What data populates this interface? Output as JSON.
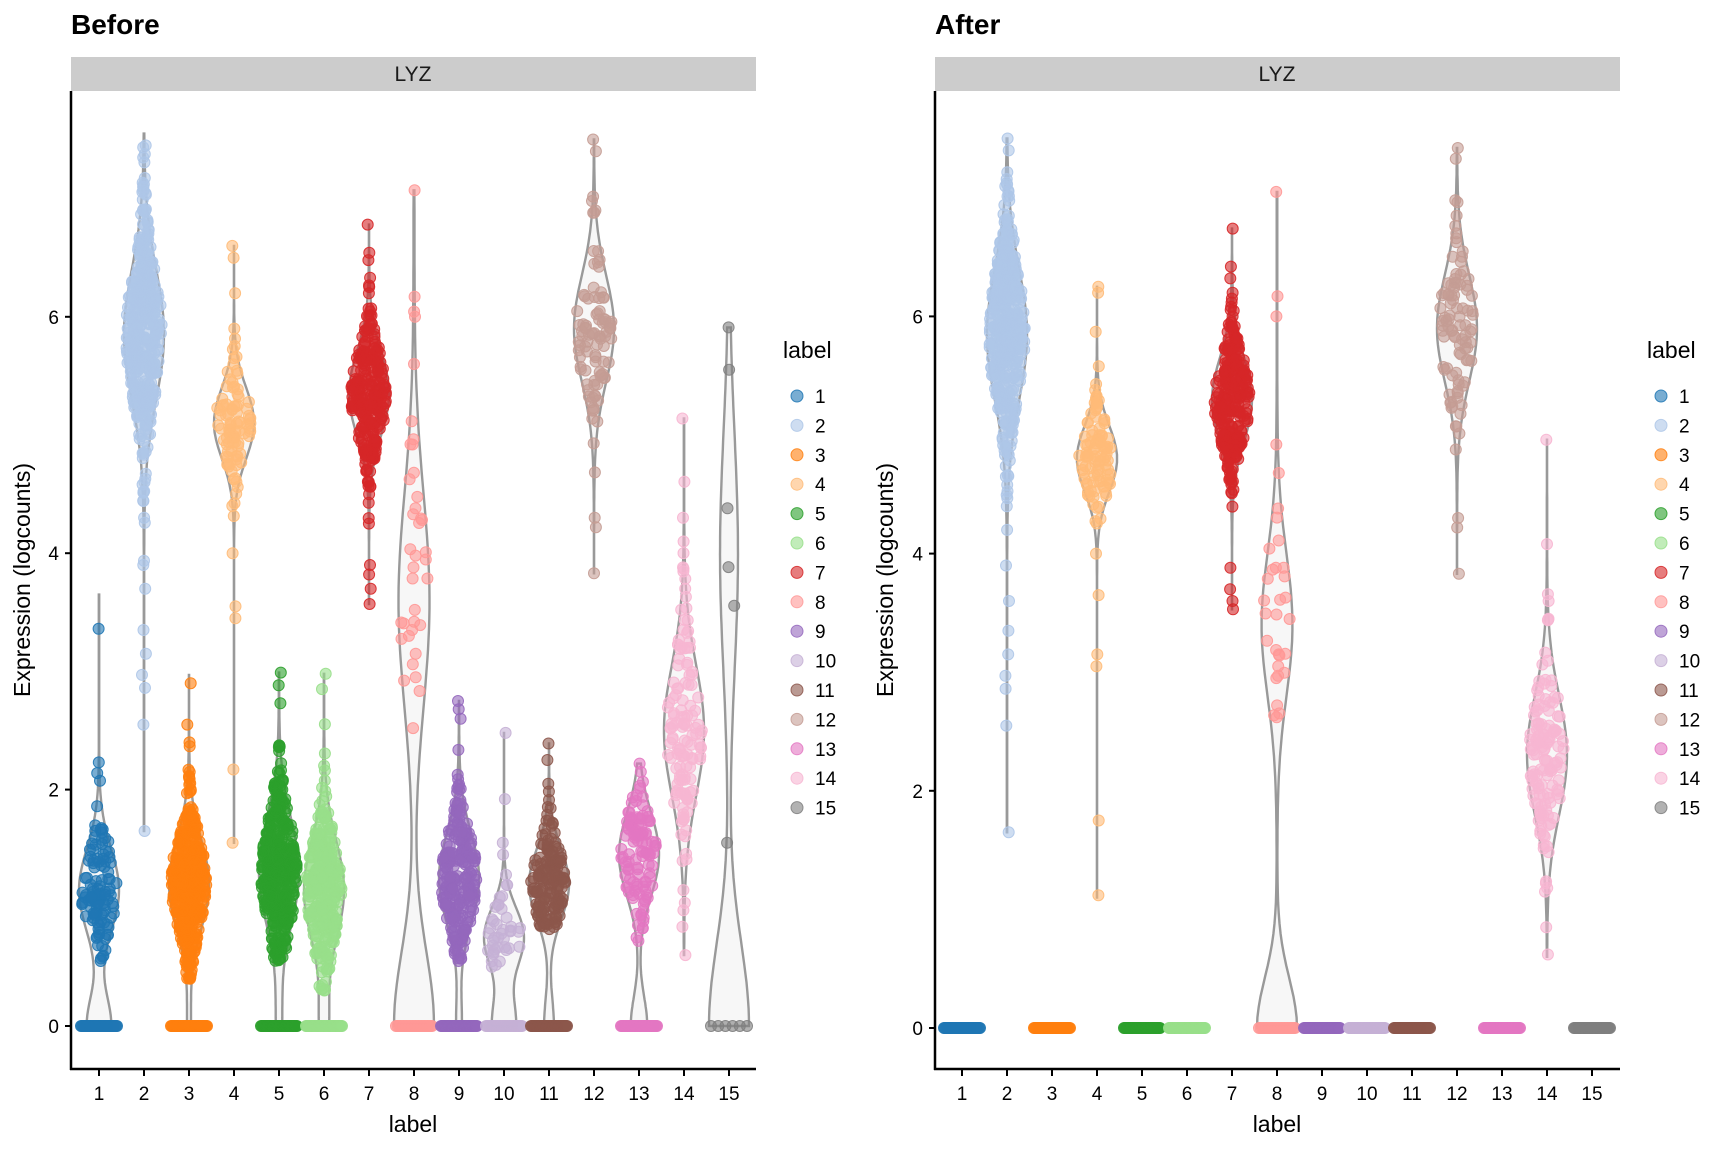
{
  "chart_data": [
    {
      "type": "violin",
      "title": "Before",
      "facet_label": "LYZ",
      "xlabel": "label",
      "ylabel": "Expression (logcounts)",
      "categories": [
        "1",
        "2",
        "3",
        "4",
        "5",
        "6",
        "7",
        "8",
        "9",
        "10",
        "11",
        "12",
        "13",
        "14",
        "15"
      ],
      "yticks": [
        0,
        2,
        4,
        6
      ],
      "ylim": [
        -0.3,
        7.6
      ],
      "legend": {
        "title": "label",
        "position": "right"
      },
      "groups": [
        {
          "label": "1",
          "n_zero": 60,
          "n_nonzero": 110,
          "center": 1.15,
          "spread": 0.35,
          "min": 0.55,
          "max": 3.65,
          "outliers": [
            3.36,
            2.23,
            2.14,
            0.55
          ]
        },
        {
          "label": "2",
          "n_zero": 0,
          "n_nonzero": 900,
          "center": 5.85,
          "spread": 0.55,
          "min": 1.65,
          "max": 7.55,
          "outliers": [
            7.45,
            7.1,
            4.6,
            4.3,
            3.9,
            3.7,
            3.35,
            3.15,
            2.97,
            2.86,
            2.55,
            1.65
          ]
        },
        {
          "label": "3",
          "n_zero": 45,
          "n_nonzero": 600,
          "center": 1.2,
          "spread": 0.38,
          "min": 0.37,
          "max": 2.97,
          "outliers": [
            2.9,
            2.55,
            0.4
          ]
        },
        {
          "label": "4",
          "n_zero": 0,
          "n_nonzero": 90,
          "center": 5.1,
          "spread": 0.3,
          "min": 1.55,
          "max": 6.6,
          "outliers": [
            6.6,
            6.5,
            6.2,
            5.9,
            4.4,
            4.0,
            3.55,
            3.45,
            2.17,
            1.55
          ]
        },
        {
          "label": "5",
          "n_zero": 60,
          "n_nonzero": 500,
          "center": 1.3,
          "spread": 0.45,
          "min": 0.55,
          "max": 2.99,
          "outliers": [
            2.99,
            2.73,
            0.57
          ]
        },
        {
          "label": "6",
          "n_zero": 60,
          "n_nonzero": 300,
          "center": 1.15,
          "spread": 0.42,
          "min": 0.3,
          "max": 2.98,
          "outliers": [
            2.98,
            2.85,
            0.3,
            0.5
          ]
        },
        {
          "label": "7",
          "n_zero": 0,
          "n_nonzero": 260,
          "center": 5.35,
          "spread": 0.35,
          "min": 3.57,
          "max": 6.78,
          "outliers": [
            6.78,
            6.48,
            6.33,
            6.2,
            3.9,
            3.82,
            3.7,
            3.57
          ]
        },
        {
          "label": "8",
          "n_zero": 25,
          "n_nonzero": 22,
          "center": 3.6,
          "spread": 0.9,
          "min": 2.52,
          "max": 7.07,
          "outliers": [
            7.07,
            6.17,
            6.0,
            4.92,
            4.68,
            4.38,
            4.33,
            3.98,
            3.88,
            3.52,
            3.42,
            3.35,
            3.15,
            3.06,
            2.95,
            2.52
          ]
        },
        {
          "label": "9",
          "n_zero": 60,
          "n_nonzero": 500,
          "center": 1.25,
          "spread": 0.38,
          "min": 0.55,
          "max": 2.75,
          "outliers": [
            2.75,
            2.68,
            2.6,
            0.55
          ]
        },
        {
          "label": "10",
          "n_zero": 30,
          "n_nonzero": 40,
          "center": 0.75,
          "spread": 0.25,
          "min": 0.5,
          "max": 2.48,
          "outliers": [
            2.48,
            1.92,
            1.55,
            1.45
          ]
        },
        {
          "label": "11",
          "n_zero": 40,
          "n_nonzero": 160,
          "center": 1.2,
          "spread": 0.3,
          "min": 0.82,
          "max": 2.39,
          "outliers": [
            2.39,
            2.25,
            2.05
          ]
        },
        {
          "label": "12",
          "n_zero": 0,
          "n_nonzero": 90,
          "center": 5.9,
          "spread": 0.45,
          "min": 3.83,
          "max": 7.5,
          "outliers": [
            7.5,
            7.4,
            6.98,
            6.88,
            4.3,
            4.22,
            3.83
          ]
        },
        {
          "label": "13",
          "n_zero": 40,
          "n_nonzero": 110,
          "center": 1.45,
          "spread": 0.35,
          "min": 0.72,
          "max": 2.22,
          "outliers": [
            2.22,
            2.15,
            0.72
          ]
        },
        {
          "label": "14",
          "n_zero": 0,
          "n_nonzero": 130,
          "center": 2.5,
          "spread": 0.55,
          "min": 0.6,
          "max": 5.14,
          "outliers": [
            5.14,
            4.3,
            3.88,
            3.7,
            0.98,
            0.84,
            0.6
          ]
        },
        {
          "label": "15",
          "n_zero": 6,
          "n_nonzero": 3,
          "center": 4.0,
          "spread": 1.0,
          "min": 1.55,
          "max": 5.91,
          "outliers": [
            5.91,
            4.38,
            1.55
          ]
        }
      ]
    },
    {
      "type": "violin",
      "title": "After",
      "facet_label": "LYZ",
      "xlabel": "label",
      "ylabel": "Expression (logcounts)",
      "categories": [
        "1",
        "2",
        "3",
        "4",
        "5",
        "6",
        "7",
        "8",
        "9",
        "10",
        "11",
        "12",
        "13",
        "14",
        "15"
      ],
      "yticks": [
        0,
        2,
        4,
        6
      ],
      "ylim": [
        -0.3,
        7.6
      ],
      "legend": {
        "title": "label",
        "position": "right"
      },
      "groups": [
        {
          "label": "1",
          "n_zero": 60,
          "n_nonzero": 0,
          "center": 0,
          "spread": 0,
          "min": 0,
          "max": 0,
          "outliers": []
        },
        {
          "label": "2",
          "n_zero": 0,
          "n_nonzero": 900,
          "center": 5.85,
          "spread": 0.55,
          "min": 1.65,
          "max": 7.5,
          "outliers": [
            7.5,
            7.4,
            4.4,
            4.2,
            3.9,
            3.6,
            3.35,
            3.15,
            2.97,
            2.86,
            2.55,
            1.65
          ]
        },
        {
          "label": "3",
          "n_zero": 45,
          "n_nonzero": 0,
          "center": 0,
          "spread": 0,
          "min": 0,
          "max": 0,
          "outliers": []
        },
        {
          "label": "4",
          "n_zero": 0,
          "n_nonzero": 95,
          "center": 4.8,
          "spread": 0.28,
          "min": 1.1,
          "max": 6.25,
          "outliers": [
            6.25,
            6.2,
            5.87,
            5.58,
            5.33,
            4.0,
            3.65,
            3.15,
            3.05,
            1.75,
            1.12
          ]
        },
        {
          "label": "5",
          "n_zero": 50,
          "n_nonzero": 0,
          "center": 0,
          "spread": 0,
          "min": 0,
          "max": 0,
          "outliers": []
        },
        {
          "label": "6",
          "n_zero": 50,
          "n_nonzero": 0,
          "center": 0,
          "spread": 0,
          "min": 0,
          "max": 0,
          "outliers": []
        },
        {
          "label": "7",
          "n_zero": 0,
          "n_nonzero": 260,
          "center": 5.3,
          "spread": 0.35,
          "min": 3.53,
          "max": 6.74,
          "outliers": [
            6.74,
            6.42,
            6.32,
            6.2,
            6.08,
            3.88,
            3.7,
            3.6,
            3.53
          ]
        },
        {
          "label": "8",
          "n_zero": 25,
          "n_nonzero": 22,
          "center": 3.4,
          "spread": 0.6,
          "min": 2.62,
          "max": 7.05,
          "outliers": [
            7.05,
            6.17,
            6.0,
            4.92,
            4.68,
            4.38,
            3.88,
            3.15,
            3.05,
            2.95,
            2.62
          ]
        },
        {
          "label": "9",
          "n_zero": 55,
          "n_nonzero": 0,
          "center": 0,
          "spread": 0,
          "min": 0,
          "max": 0,
          "outliers": []
        },
        {
          "label": "10",
          "n_zero": 55,
          "n_nonzero": 0,
          "center": 0,
          "spread": 0,
          "min": 0,
          "max": 0,
          "outliers": []
        },
        {
          "label": "11",
          "n_zero": 50,
          "n_nonzero": 0,
          "center": 0,
          "spread": 0,
          "min": 0,
          "max": 0,
          "outliers": []
        },
        {
          "label": "12",
          "n_zero": 0,
          "n_nonzero": 90,
          "center": 5.9,
          "spread": 0.45,
          "min": 3.83,
          "max": 7.42,
          "outliers": [
            7.42,
            7.33,
            6.98,
            6.85,
            4.3,
            4.22,
            3.83
          ]
        },
        {
          "label": "13",
          "n_zero": 50,
          "n_nonzero": 0,
          "center": 0,
          "spread": 0,
          "min": 0,
          "max": 0,
          "outliers": []
        },
        {
          "label": "14",
          "n_zero": 0,
          "n_nonzero": 130,
          "center": 2.3,
          "spread": 0.5,
          "min": 0.6,
          "max": 4.96,
          "outliers": [
            4.96,
            4.08,
            3.6,
            3.45,
            1.15,
            0.85,
            0.62
          ]
        },
        {
          "label": "15",
          "n_zero": 55,
          "n_nonzero": 0,
          "center": 0,
          "spread": 0,
          "min": 0,
          "max": 0,
          "outliers": []
        }
      ]
    }
  ],
  "legend": {
    "title": "label",
    "items": [
      {
        "label": "1",
        "color": "#1f77b4"
      },
      {
        "label": "2",
        "color": "#aec7e8"
      },
      {
        "label": "3",
        "color": "#ff7f0e"
      },
      {
        "label": "4",
        "color": "#ffbb78"
      },
      {
        "label": "5",
        "color": "#2ca02c"
      },
      {
        "label": "6",
        "color": "#98df8a"
      },
      {
        "label": "7",
        "color": "#d62728"
      },
      {
        "label": "8",
        "color": "#ff9896"
      },
      {
        "label": "9",
        "color": "#9467bd"
      },
      {
        "label": "10",
        "color": "#c5b0d5"
      },
      {
        "label": "11",
        "color": "#8c564b"
      },
      {
        "label": "12",
        "color": "#c49c94"
      },
      {
        "label": "13",
        "color": "#e377c2"
      },
      {
        "label": "14",
        "color": "#f7b6d2"
      },
      {
        "label": "15",
        "color": "#7f7f7f"
      }
    ]
  },
  "style": {
    "violin_stroke": "#999999",
    "violin_fill": "#f7f7f7",
    "strip_fill": "#cccccc",
    "point_alpha": 0.6
  }
}
